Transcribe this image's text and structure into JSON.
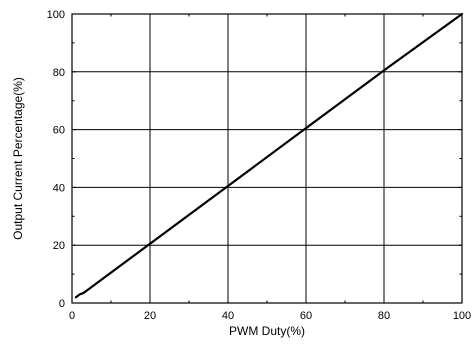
{
  "chart_data": {
    "type": "line",
    "title": "",
    "xlabel": "PWM Duty(%)",
    "ylabel": "Output Current Percentage(%)",
    "xlim": [
      0,
      100
    ],
    "ylim": [
      0,
      100
    ],
    "x_ticks": [
      0,
      20,
      40,
      60,
      80,
      100
    ],
    "y_ticks": [
      0,
      20,
      40,
      60,
      80,
      100
    ],
    "grid": true,
    "series": [
      {
        "x": [
          1,
          2,
          3,
          20,
          40,
          60,
          80,
          100
        ],
        "y": [
          2,
          3,
          3.5,
          20.5,
          40.5,
          60.5,
          80.5,
          100
        ],
        "color": "#000000"
      }
    ]
  }
}
